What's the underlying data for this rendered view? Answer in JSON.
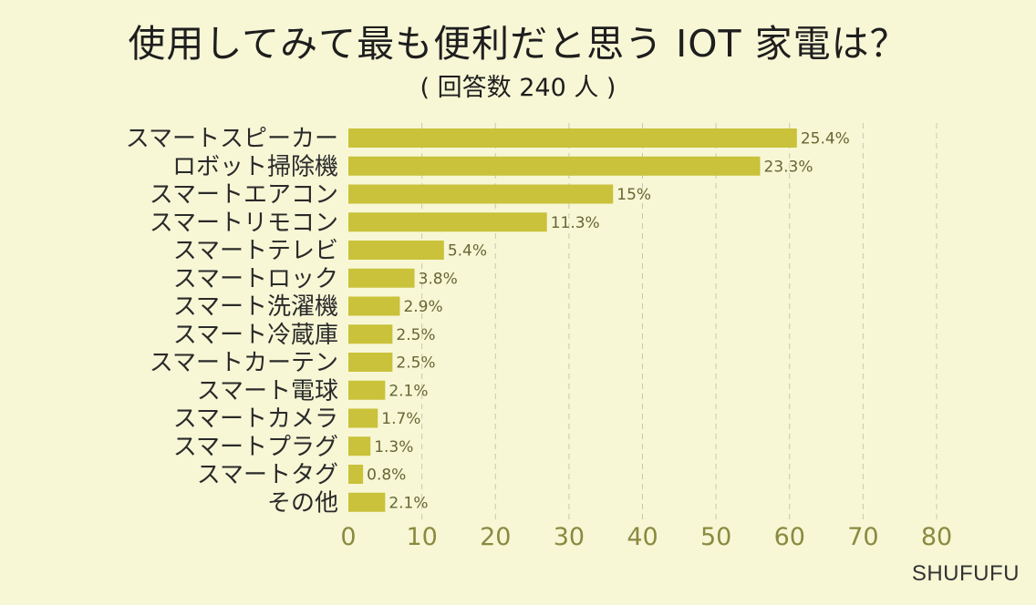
{
  "title": "使用してみて最も便利だと思う IOT 家電は？",
  "subtitle": "( 回答数 240 人 )",
  "brand": "SHUFUFU",
  "colors": {
    "background": "#f7f7d6",
    "bar": "#c9c23a",
    "tick_label": "#8a8a40",
    "grid": "#c8c8b0"
  },
  "chart_data": {
    "type": "bar",
    "orientation": "horizontal",
    "title": "使用してみて最も便利だと思う IOT 家電は？",
    "subtitle": "( 回答数 240 人 )",
    "categories": [
      "スマートスピーカー",
      "ロボット掃除機",
      "スマートエアコン",
      "スマートリモコン",
      "スマートテレビ",
      "スマートロック",
      "スマート洗濯機",
      "スマート冷蔵庫",
      "スマートカーテン",
      "スマート電球",
      "スマートカメラ",
      "スマートプラグ",
      "スマートタグ",
      "その他"
    ],
    "values": [
      61,
      56,
      36,
      27,
      13,
      9,
      7,
      6,
      6,
      5,
      4,
      3,
      2,
      5
    ],
    "value_labels": [
      "25.4%",
      "23.3%",
      "15%",
      "11.3%",
      "5.4%",
      "3.8%",
      "2.9%",
      "2.5%",
      "2.5%",
      "2.1%",
      "1.7%",
      "1.3%",
      "0.8%",
      "2.1%"
    ],
    "xlim": [
      0,
      80
    ],
    "xticks": [
      0,
      10,
      20,
      30,
      40,
      50,
      60,
      70,
      80
    ],
    "xlabel": "",
    "ylabel": "",
    "grid": "vertical-dashed",
    "legend": "none"
  }
}
